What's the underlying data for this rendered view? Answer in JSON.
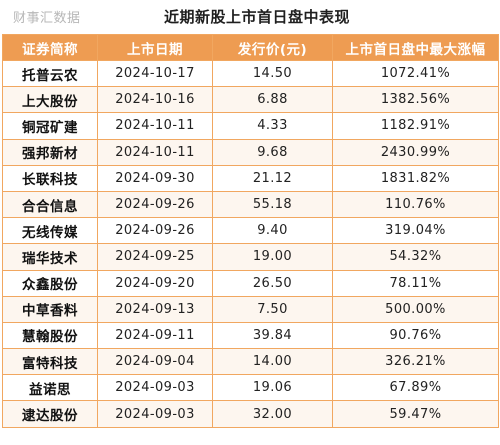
{
  "header": {
    "watermark": "财事汇数据",
    "title": "近期新股上市首日盘中表现"
  },
  "table": {
    "columns": [
      "证券简称",
      "上市日期",
      "发行价(元)",
      "上市首日盘中最大涨幅"
    ],
    "rows": [
      [
        "托普云农",
        "2024-10-17",
        "14.50",
        "1072.41%"
      ],
      [
        "上大股份",
        "2024-10-16",
        "6.88",
        "1382.56%"
      ],
      [
        "铜冠矿建",
        "2024-10-11",
        "4.33",
        "1182.91%"
      ],
      [
        "强邦新材",
        "2024-10-11",
        "9.68",
        "2430.99%"
      ],
      [
        "长联科技",
        "2024-09-30",
        "21.12",
        "1831.82%"
      ],
      [
        "合合信息",
        "2024-09-26",
        "55.18",
        "110.76%"
      ],
      [
        "无线传媒",
        "2024-09-26",
        "9.40",
        "319.04%"
      ],
      [
        "瑞华技术",
        "2024-09-25",
        "19.00",
        "54.32%"
      ],
      [
        "众鑫股份",
        "2024-09-20",
        "26.50",
        "78.11%"
      ],
      [
        "中草香料",
        "2024-09-13",
        "7.50",
        "500.00%"
      ],
      [
        "慧翰股份",
        "2024-09-11",
        "39.84",
        "90.76%"
      ],
      [
        "富特科技",
        "2024-09-04",
        "14.00",
        "326.21%"
      ],
      [
        "益诺思",
        "2024-09-03",
        "19.06",
        "67.89%"
      ],
      [
        "逮达股份",
        "2024-09-03",
        "32.00",
        "59.47%"
      ]
    ]
  },
  "colors": {
    "header_bg": "#ee9c52",
    "border": "#f1a760",
    "header_text": "#ffffff"
  }
}
